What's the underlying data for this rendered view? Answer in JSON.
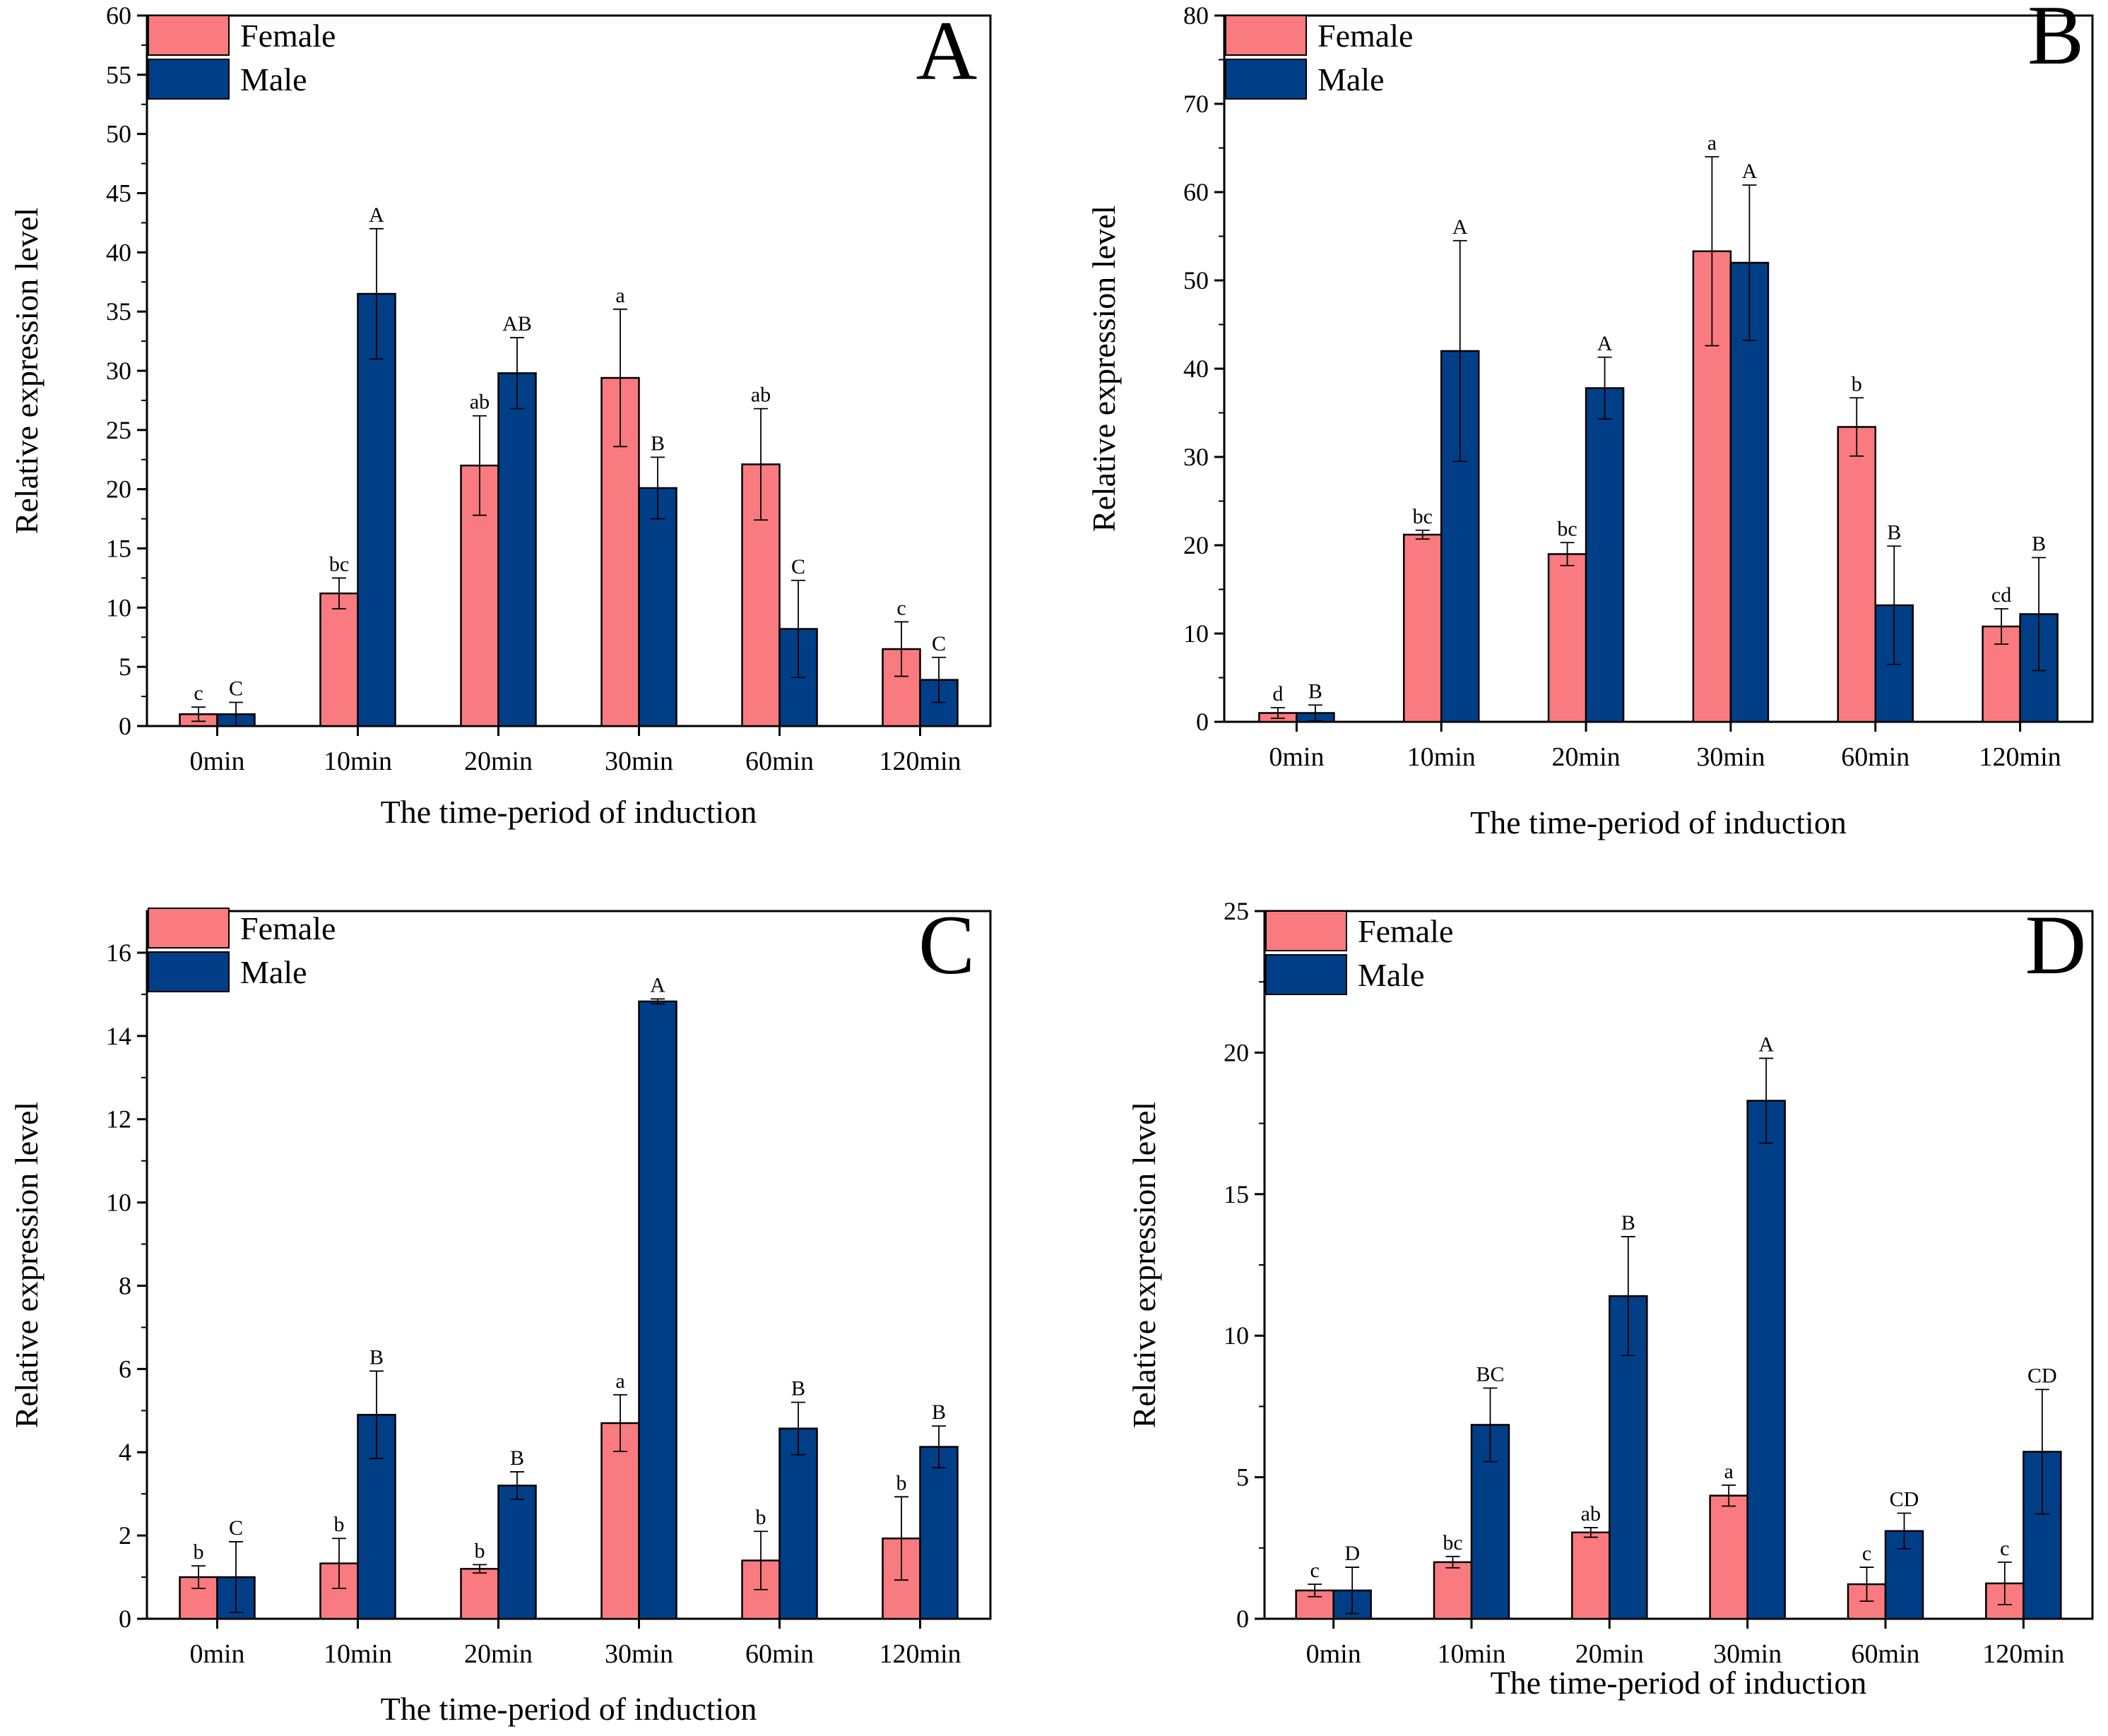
{
  "chart_data": [
    {
      "type": "bar",
      "panel": "A",
      "categories": [
        "0min",
        "10min",
        "20min",
        "30min",
        "60min",
        "120min"
      ],
      "series": [
        {
          "name": "Female",
          "color": "#F97B80",
          "values": [
            1.0,
            11.2,
            22.0,
            29.4,
            22.1,
            6.5
          ],
          "errors": [
            0.6,
            1.3,
            4.2,
            5.8,
            4.7,
            2.3
          ],
          "labels": [
            "c",
            "bc",
            "ab",
            "a",
            "ab",
            "c"
          ]
        },
        {
          "name": "Male",
          "color": "#003F87",
          "values": [
            1.0,
            36.5,
            29.8,
            20.1,
            8.2,
            3.9
          ],
          "errors": [
            1.0,
            5.5,
            3.0,
            2.6,
            4.1,
            1.9
          ],
          "labels": [
            "C",
            "A",
            "AB",
            "B",
            "C",
            "C"
          ]
        }
      ],
      "title": "A",
      "xlabel": "The time-period of induction",
      "ylabel": "Relative expression level",
      "ylim": [
        0,
        60
      ],
      "yticks": [
        "0",
        "5",
        "10",
        "15",
        "20",
        "25",
        "30",
        "35",
        "40",
        "45",
        "50",
        "55",
        "60"
      ],
      "legend": "top-left"
    },
    {
      "type": "bar",
      "panel": "B",
      "categories": [
        "0min",
        "10min",
        "20min",
        "30min",
        "60min",
        "120min"
      ],
      "series": [
        {
          "name": "Female",
          "color": "#F97B80",
          "values": [
            1.0,
            21.2,
            19.0,
            53.3,
            33.4,
            10.8
          ],
          "errors": [
            0.6,
            0.5,
            1.3,
            10.7,
            3.3,
            2.0
          ],
          "labels": [
            "d",
            "bc",
            "bc",
            "a",
            "b",
            "cd"
          ]
        },
        {
          "name": "Male",
          "color": "#003F87",
          "values": [
            1.0,
            42.0,
            37.8,
            52.0,
            13.2,
            12.2
          ],
          "errors": [
            0.9,
            12.5,
            3.5,
            8.8,
            6.7,
            6.4
          ],
          "labels": [
            "B",
            "A",
            "A",
            "A",
            "B",
            "B"
          ]
        }
      ],
      "title": "B",
      "xlabel": "The time-period of induction",
      "ylabel": "Relative expression level",
      "ylim": [
        0,
        80
      ],
      "yticks": [
        "0",
        "10",
        "20",
        "30",
        "40",
        "50",
        "60",
        "70",
        "80"
      ],
      "legend": "top-left"
    },
    {
      "type": "bar",
      "panel": "C",
      "categories": [
        "0min",
        "10min",
        "20min",
        "30min",
        "60min",
        "120min"
      ],
      "series": [
        {
          "name": "Female",
          "color": "#F97B80",
          "values": [
            1.0,
            1.33,
            1.2,
            4.7,
            1.4,
            1.93
          ],
          "errors": [
            0.27,
            0.6,
            0.1,
            0.68,
            0.7,
            1.0
          ],
          "labels": [
            "b",
            "b",
            "b",
            "a",
            "b",
            "b"
          ]
        },
        {
          "name": "Male",
          "color": "#003F87",
          "values": [
            1.0,
            4.9,
            3.2,
            14.83,
            4.57,
            4.13
          ],
          "errors": [
            0.85,
            1.05,
            0.33,
            0.06,
            0.63,
            0.5
          ],
          "labels": [
            "C",
            "B",
            "B",
            "A",
            "B",
            "B"
          ]
        }
      ],
      "title": "C",
      "xlabel": "The time-period of induction",
      "ylabel": "Relative expression level",
      "ylim": [
        0,
        17
      ],
      "yticks": [
        "0",
        "2",
        "4",
        "6",
        "8",
        "10",
        "12",
        "14",
        "16"
      ],
      "legend": "top-left"
    },
    {
      "type": "bar",
      "panel": "D",
      "categories": [
        "0min",
        "10min",
        "20min",
        "30min",
        "60min",
        "120min"
      ],
      "series": [
        {
          "name": "Female",
          "color": "#F97B80",
          "values": [
            1.0,
            2.0,
            3.05,
            4.35,
            1.22,
            1.25
          ],
          "errors": [
            0.22,
            0.2,
            0.17,
            0.37,
            0.6,
            0.75
          ],
          "labels": [
            "c",
            "bc",
            "ab",
            "a",
            "c",
            "c"
          ]
        },
        {
          "name": "Male",
          "color": "#003F87",
          "values": [
            1.0,
            6.85,
            11.4,
            18.3,
            3.1,
            5.9
          ],
          "errors": [
            0.82,
            1.3,
            2.1,
            1.5,
            0.63,
            2.2
          ],
          "labels": [
            "D",
            "BC",
            "B",
            "A",
            "CD",
            "CD"
          ]
        }
      ],
      "title": "D",
      "xlabel": "The time-period of induction",
      "ylabel": "Relative expression level",
      "ylim": [
        0,
        25
      ],
      "yticks": [
        "0",
        "5",
        "10",
        "15",
        "20",
        "25"
      ],
      "legend": "top-left"
    }
  ]
}
